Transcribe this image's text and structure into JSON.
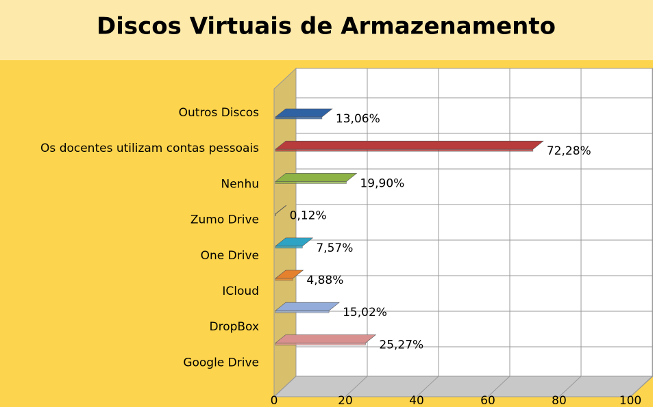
{
  "chart_data": {
    "type": "bar3d",
    "orientation": "horizontal",
    "title": "Discos Virtuais de Armazenamento",
    "categories": [
      "Outros Discos",
      "Os docentes utilizam contas pessoais",
      "Nenhu",
      "Zumo Drive",
      "One Drive",
      "ICloud",
      "DropBox",
      "Google Drive"
    ],
    "values": [
      13.06,
      72.28,
      19.9,
      0.12,
      7.57,
      4.88,
      15.02,
      25.27
    ],
    "value_labels": [
      "13,06%",
      "72,28%",
      "19,90%",
      "0,12%",
      "7,57%",
      "4,88%",
      "15,02%",
      "25,27%"
    ],
    "colors": [
      "#2f62a3",
      "#b83c3c",
      "#8db245",
      "#5e4b91",
      "#2ea3c4",
      "#e5802d",
      "#93acd9",
      "#d9918f"
    ],
    "xlim": [
      0,
      100
    ],
    "xticks": [
      0,
      20,
      40,
      60,
      80,
      100
    ],
    "grid": true
  }
}
